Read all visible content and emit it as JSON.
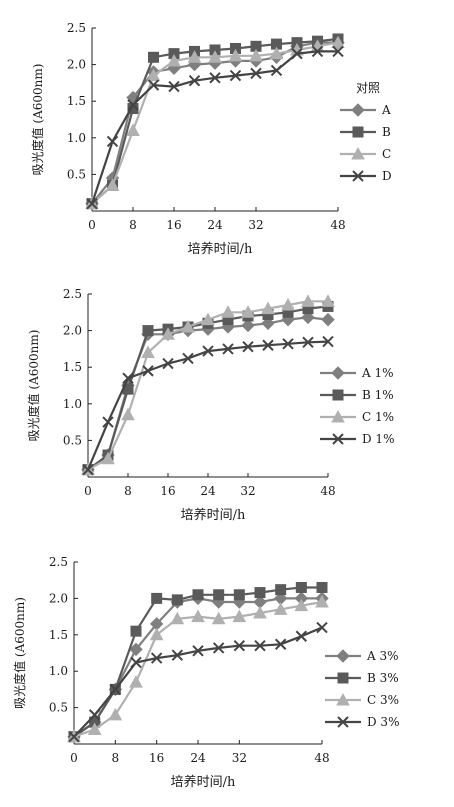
{
  "chart_data": [
    {
      "type": "line",
      "title": "",
      "xlabel": "培养时间/h",
      "ylabel": "吸光度值 (A600nm)",
      "x_ticks": [
        "0",
        "8",
        "16",
        "24",
        "32",
        "48"
      ],
      "y_ticks": [
        "0.5",
        "1.0",
        "1.5",
        "2.0",
        "2.5"
      ],
      "xlim": [
        0,
        48
      ],
      "ylim": [
        0,
        2.5
      ],
      "legend_title": "对照",
      "legend_placement": "right",
      "x": [
        0,
        4,
        8,
        12,
        16,
        20,
        24,
        28,
        32,
        36,
        40,
        44,
        48
      ],
      "series": [
        {
          "name": "A",
          "marker": "diamond",
          "color": "#7f7f7f",
          "values": [
            0.1,
            0.45,
            1.55,
            1.9,
            1.95,
            2.0,
            2.02,
            2.05,
            2.05,
            2.1,
            2.25,
            2.3,
            2.3
          ]
        },
        {
          "name": "B",
          "marker": "square",
          "color": "#5a5a5a",
          "values": [
            0.1,
            0.35,
            1.4,
            2.1,
            2.15,
            2.18,
            2.2,
            2.22,
            2.25,
            2.28,
            2.3,
            2.32,
            2.35
          ]
        },
        {
          "name": "C",
          "marker": "triangle",
          "color": "#b0b0b0",
          "values": [
            0.1,
            0.35,
            1.1,
            1.85,
            2.05,
            2.1,
            2.1,
            2.12,
            2.12,
            2.15,
            2.2,
            2.25,
            2.3
          ]
        },
        {
          "name": "D",
          "marker": "x",
          "color": "#444444",
          "values": [
            0.1,
            0.95,
            1.45,
            1.72,
            1.7,
            1.78,
            1.82,
            1.85,
            1.88,
            1.92,
            2.15,
            2.18,
            2.18
          ]
        }
      ]
    },
    {
      "type": "line",
      "title": "",
      "xlabel": "培养时间/h",
      "ylabel": "吸光度值 (A600nm)",
      "x_ticks": [
        "0",
        "8",
        "16",
        "24",
        "32",
        "48"
      ],
      "y_ticks": [
        "0.5",
        "1.0",
        "1.5",
        "2.0",
        "2.5"
      ],
      "xlim": [
        0,
        48
      ],
      "ylim": [
        0,
        2.5
      ],
      "legend_title": "",
      "legend_placement": "right",
      "x": [
        0,
        4,
        8,
        12,
        16,
        20,
        24,
        28,
        32,
        36,
        40,
        44,
        48
      ],
      "series": [
        {
          "name": "A  1%",
          "marker": "diamond",
          "color": "#7f7f7f",
          "values": [
            0.1,
            0.3,
            1.25,
            1.95,
            1.95,
            2.0,
            2.02,
            2.05,
            2.07,
            2.1,
            2.15,
            2.18,
            2.15
          ]
        },
        {
          "name": "B  1%",
          "marker": "square",
          "color": "#5a5a5a",
          "values": [
            0.1,
            0.3,
            1.2,
            2.0,
            2.02,
            2.05,
            2.1,
            2.15,
            2.2,
            2.22,
            2.25,
            2.3,
            2.33
          ]
        },
        {
          "name": "C  1%",
          "marker": "triangle",
          "color": "#b0b0b0",
          "values": [
            0.1,
            0.25,
            0.85,
            1.7,
            1.95,
            2.05,
            2.15,
            2.25,
            2.25,
            2.3,
            2.35,
            2.4,
            2.4
          ]
        },
        {
          "name": "D  1%",
          "marker": "x",
          "color": "#444444",
          "values": [
            0.1,
            0.75,
            1.35,
            1.45,
            1.55,
            1.62,
            1.72,
            1.75,
            1.78,
            1.8,
            1.82,
            1.84,
            1.85
          ]
        }
      ]
    },
    {
      "type": "line",
      "title": "",
      "xlabel": "培养时间/h",
      "ylabel": "吸光度值 (A600nm)",
      "x_ticks": [
        "0",
        "8",
        "16",
        "24",
        "32",
        "48"
      ],
      "y_ticks": [
        "0.5",
        "1.0",
        "1.5",
        "2.0",
        "2.5"
      ],
      "xlim": [
        0,
        48
      ],
      "ylim": [
        0,
        2.5
      ],
      "legend_title": "",
      "legend_placement": "right",
      "x": [
        0,
        4,
        8,
        12,
        16,
        20,
        24,
        28,
        32,
        36,
        40,
        44,
        48
      ],
      "series": [
        {
          "name": "A  3%",
          "marker": "diamond",
          "color": "#7f7f7f",
          "values": [
            0.1,
            0.3,
            0.75,
            1.3,
            1.65,
            1.95,
            2.0,
            1.95,
            1.95,
            1.95,
            2.0,
            2.0,
            2.0
          ]
        },
        {
          "name": "B  3%",
          "marker": "square",
          "color": "#5a5a5a",
          "values": [
            0.1,
            0.3,
            0.75,
            1.55,
            2.0,
            1.98,
            2.05,
            2.05,
            2.05,
            2.08,
            2.12,
            2.15,
            2.15
          ]
        },
        {
          "name": "C  3%",
          "marker": "triangle",
          "color": "#b0b0b0",
          "values": [
            0.1,
            0.2,
            0.4,
            0.85,
            1.5,
            1.72,
            1.75,
            1.72,
            1.75,
            1.8,
            1.85,
            1.9,
            1.95
          ]
        },
        {
          "name": "D  3%",
          "marker": "x",
          "color": "#444444",
          "values": [
            0.1,
            0.4,
            0.75,
            1.12,
            1.18,
            1.22,
            1.28,
            1.32,
            1.35,
            1.35,
            1.37,
            1.48,
            1.6
          ]
        }
      ]
    }
  ]
}
